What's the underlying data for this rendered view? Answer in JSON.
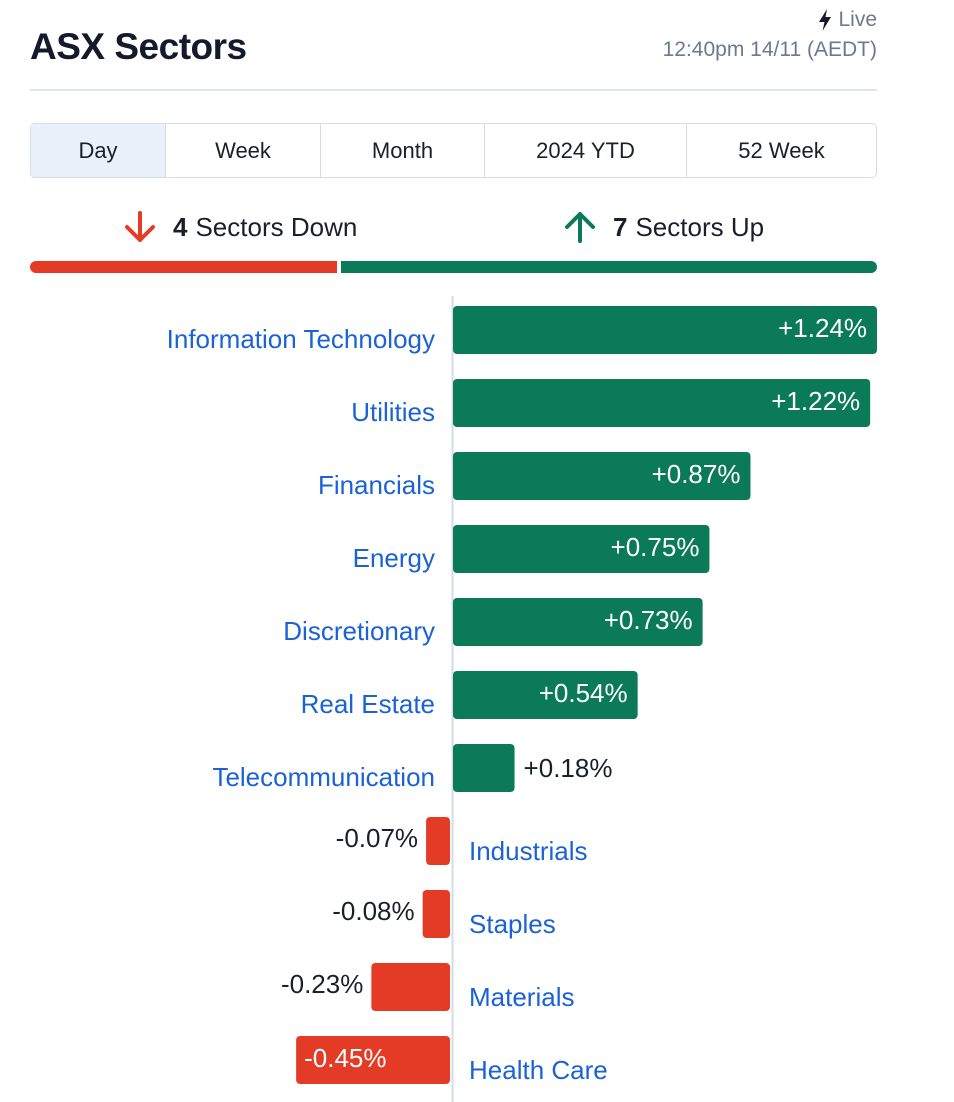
{
  "header": {
    "title": "ASX Sectors",
    "live_label": "Live",
    "timestamp": "12:40pm 14/11 (AEDT)"
  },
  "tabs": [
    {
      "label": "Day",
      "active": true
    },
    {
      "label": "Week",
      "active": false
    },
    {
      "label": "Month",
      "active": false
    },
    {
      "label": "2024 YTD",
      "active": false
    },
    {
      "label": "52 Week",
      "active": false
    }
  ],
  "summary": {
    "down_count": "4",
    "down_label": "Sectors Down",
    "up_count": "7",
    "up_label": "Sectors Up"
  },
  "colors": {
    "up": "#0b7a57",
    "down": "#e43b27",
    "label": "#1a62d6",
    "value": "#1b1f2a"
  },
  "chart_data": {
    "type": "bar",
    "orientation": "horizontal",
    "categories": [
      "Information Technology",
      "Utilities",
      "Financials",
      "Energy",
      "Discretionary",
      "Real Estate",
      "Telecommunication",
      "Industrials",
      "Staples",
      "Materials",
      "Health Care"
    ],
    "values": [
      1.24,
      1.22,
      0.87,
      0.75,
      0.73,
      0.54,
      0.18,
      -0.07,
      -0.08,
      -0.23,
      -0.45
    ],
    "value_labels": [
      "+1.24%",
      "+1.22%",
      "+0.87%",
      "+0.75%",
      "+0.73%",
      "+0.54%",
      "+0.18%",
      "-0.07%",
      "-0.08%",
      "-0.23%",
      "-0.45%"
    ],
    "title": "",
    "xlabel": "",
    "ylabel": ""
  }
}
